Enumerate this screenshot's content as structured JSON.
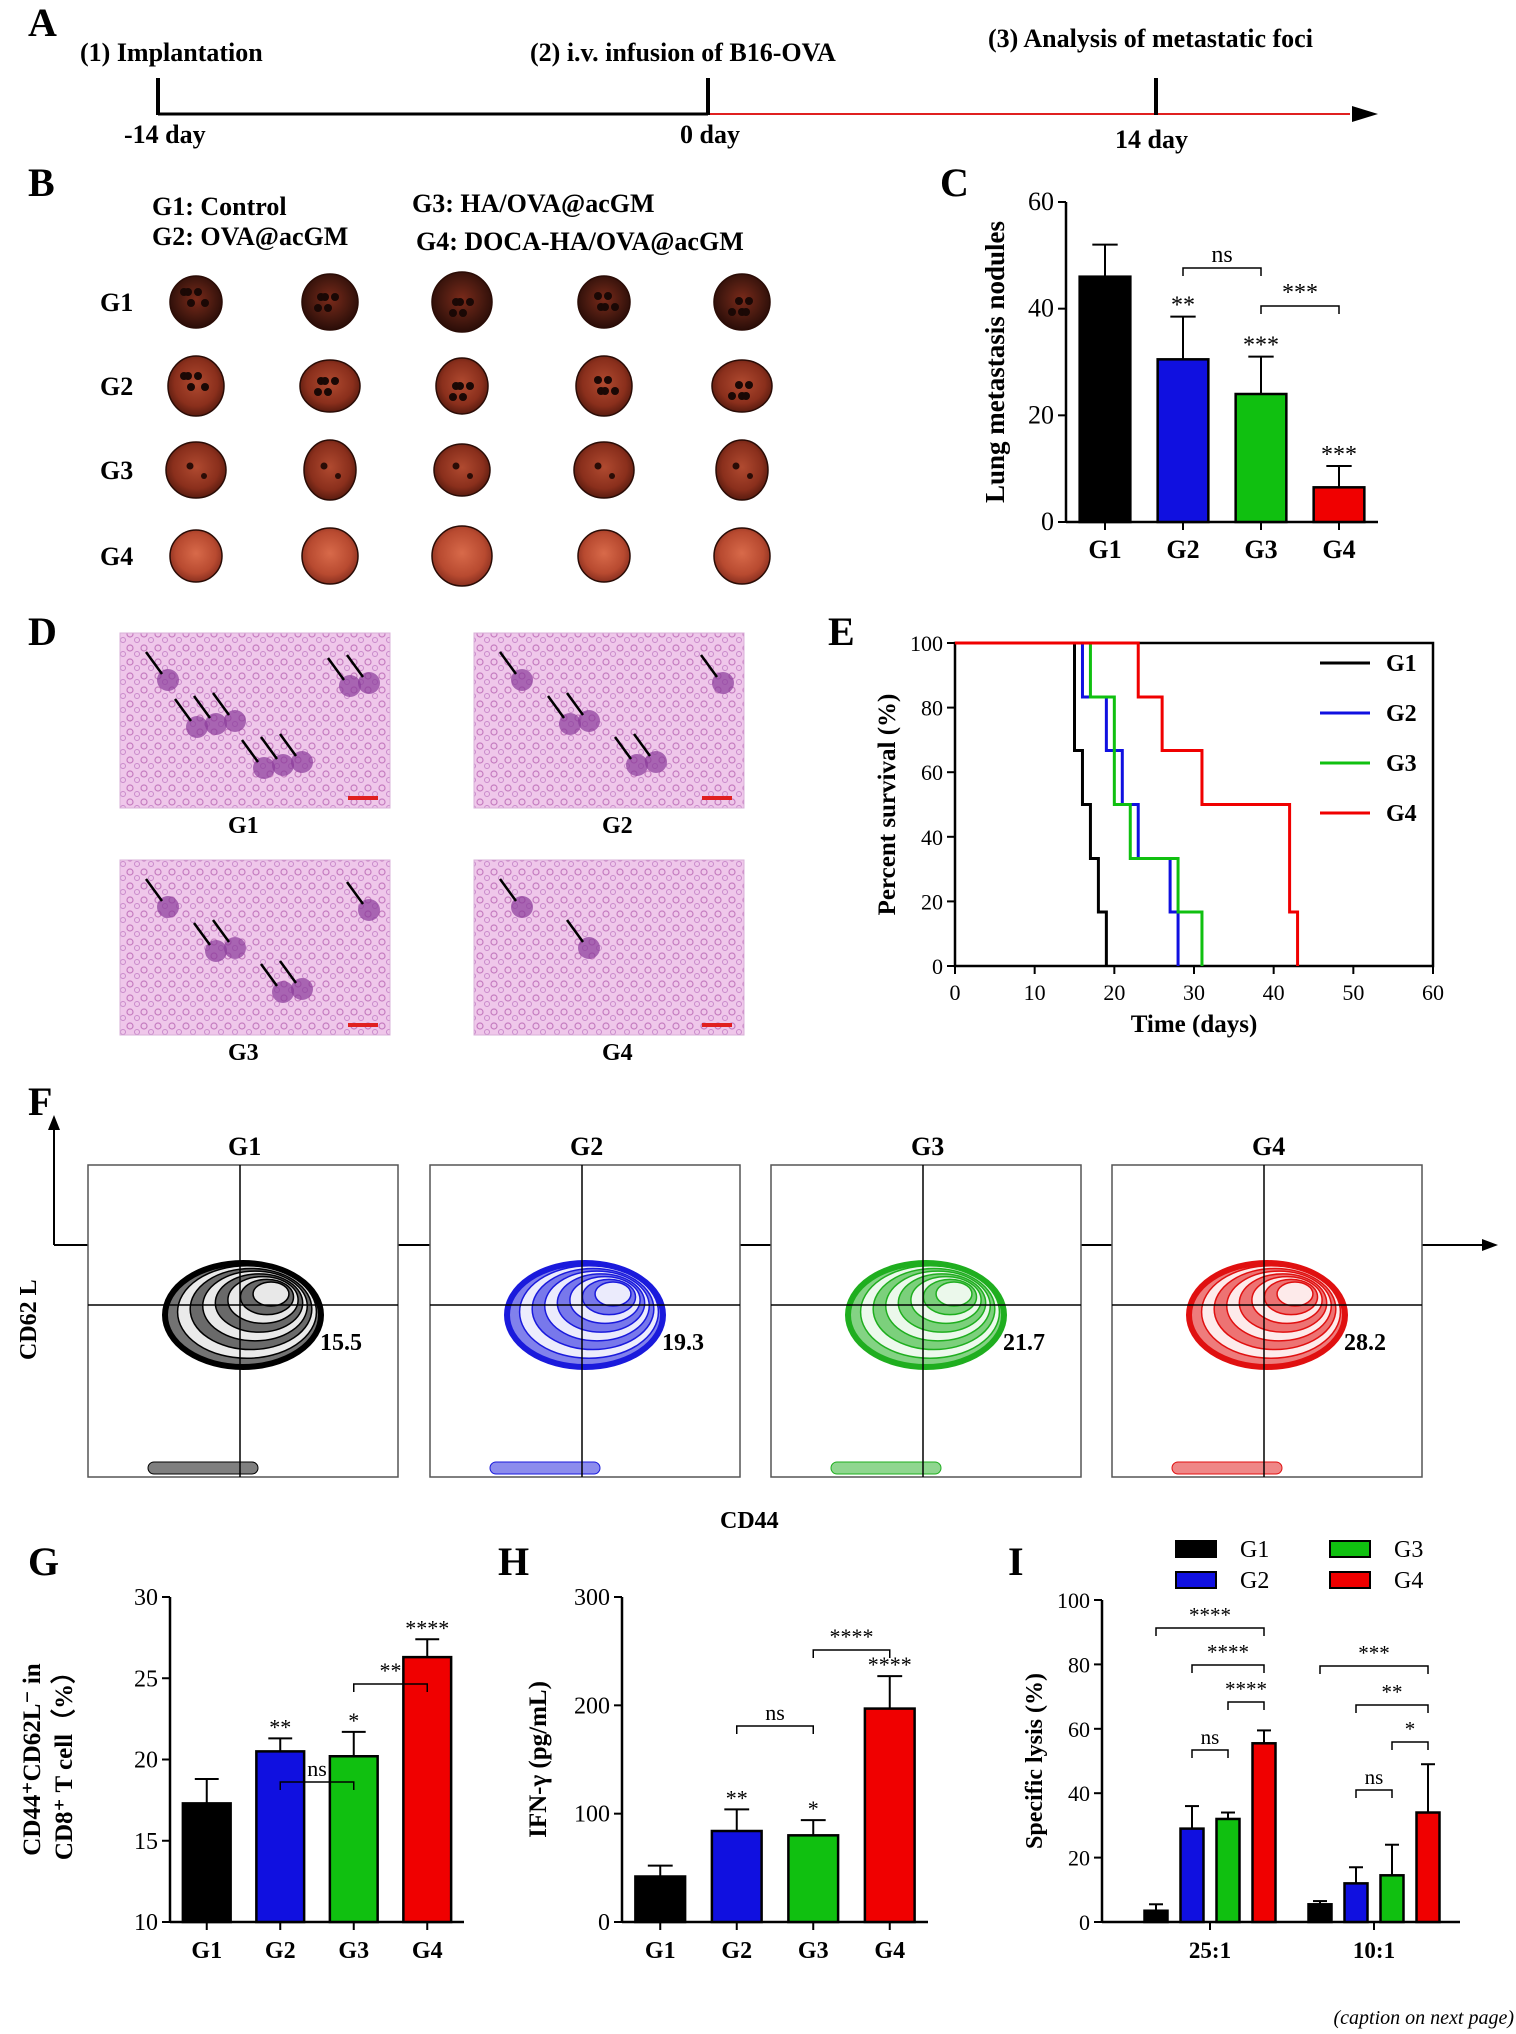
{
  "panel_letters": [
    "A",
    "B",
    "C",
    "D",
    "E",
    "F",
    "G",
    "H",
    "I"
  ],
  "timeline": {
    "steps": [
      {
        "label": "(1) Implantation",
        "day": "-14 day"
      },
      {
        "label": "(2) i.v. infusion of B16-OVA",
        "day": "0 day"
      },
      {
        "label": "(3) Analysis of metastatic foci",
        "day": "14 day"
      }
    ]
  },
  "lung_photos": {
    "legend": [
      "G1: Control",
      "G2: OVA@acGM",
      "G3: HA/OVA@acGM",
      "G4: DOCA-HA/OVA@acGM"
    ],
    "rows": [
      "G1",
      "G2",
      "G3",
      "G4"
    ]
  },
  "histology": {
    "labels": [
      "G1",
      "G2",
      "G3",
      "G4"
    ]
  },
  "flow": {
    "groups": [
      {
        "name": "G1",
        "value": "15.5",
        "color": "#000000"
      },
      {
        "name": "G2",
        "value": "19.3",
        "color": "#1a1adc"
      },
      {
        "name": "G3",
        "value": "21.7",
        "color": "#1fae1f"
      },
      {
        "name": "G4",
        "value": "28.2",
        "color": "#e01010"
      }
    ],
    "ylabel": "CD62 L",
    "xlabel": "CD44"
  },
  "chart_data": [
    {
      "id": "C",
      "type": "bar",
      "categories": [
        "G1",
        "G2",
        "G3",
        "G4"
      ],
      "values": [
        46,
        30.5,
        24,
        6.5
      ],
      "errors": [
        6,
        8,
        7,
        4
      ],
      "colors": [
        "#000000",
        "#1010e0",
        "#10c010",
        "#f00000"
      ],
      "ylabel": "Lung metastasis nodules",
      "ylim": [
        0,
        60
      ],
      "yticks": [
        0,
        20,
        40,
        60
      ],
      "stars": [
        "",
        "**",
        "***",
        "***"
      ],
      "brackets": [
        {
          "from": 1,
          "to": 2,
          "label": "ns"
        },
        {
          "from": 2,
          "to": 3,
          "label": "***"
        }
      ]
    },
    {
      "id": "E",
      "type": "line",
      "step": true,
      "xlabel": "Time (days)",
      "ylabel": "Percent survival (%)",
      "xlim": [
        0,
        60
      ],
      "ylim": [
        0,
        100
      ],
      "xticks": [
        0,
        10,
        20,
        30,
        40,
        50,
        60
      ],
      "yticks": [
        0,
        20,
        40,
        60,
        80,
        100
      ],
      "series": [
        {
          "name": "G1",
          "color": "#000000",
          "x": [
            0,
            15,
            15,
            16,
            16,
            17,
            17,
            18,
            18,
            19,
            19
          ],
          "y": [
            100,
            100,
            66.7,
            66.7,
            50,
            50,
            33.3,
            33.3,
            16.7,
            16.7,
            0
          ]
        },
        {
          "name": "G2",
          "color": "#1010e0",
          "x": [
            0,
            16,
            16,
            19,
            19,
            21,
            21,
            23,
            23,
            27,
            27,
            28,
            28
          ],
          "y": [
            100,
            100,
            83.3,
            83.3,
            66.7,
            66.7,
            50,
            50,
            33.3,
            33.3,
            16.7,
            16.7,
            0
          ]
        },
        {
          "name": "G3",
          "color": "#10c010",
          "x": [
            0,
            17,
            17,
            20,
            20,
            22,
            22,
            28,
            28,
            31,
            31
          ],
          "y": [
            100,
            100,
            83.3,
            83.3,
            50,
            50,
            33.3,
            33.3,
            16.7,
            16.7,
            0
          ]
        },
        {
          "name": "G4",
          "color": "#f00000",
          "x": [
            0,
            23,
            23,
            26,
            26,
            31,
            31,
            42,
            42,
            43,
            43
          ],
          "y": [
            100,
            100,
            83.3,
            83.3,
            66.7,
            66.7,
            50,
            50,
            16.7,
            16.7,
            0
          ]
        }
      ]
    },
    {
      "id": "G",
      "type": "bar",
      "categories": [
        "G1",
        "G2",
        "G3",
        "G4"
      ],
      "values": [
        17.3,
        20.5,
        20.2,
        26.3
      ],
      "errors": [
        1.5,
        0.8,
        1.5,
        1.1
      ],
      "colors": [
        "#000000",
        "#1010e0",
        "#10c010",
        "#f00000"
      ],
      "ylabel_line1": "CD44⁺CD62L⁻ in",
      "ylabel_line2": "CD8⁺ T cell（%）",
      "ylim": [
        10,
        30
      ],
      "yticks": [
        10,
        15,
        20,
        25,
        30
      ],
      "stars": [
        "",
        "**",
        "*",
        "****"
      ],
      "brackets": [
        {
          "from": 1,
          "to": 2,
          "label": "ns"
        },
        {
          "from": 2,
          "to": 3,
          "label": "**"
        }
      ]
    },
    {
      "id": "H",
      "type": "bar",
      "categories": [
        "G1",
        "G2",
        "G3",
        "G4"
      ],
      "values": [
        42,
        84,
        80,
        197
      ],
      "errors": [
        10,
        20,
        14,
        30
      ],
      "colors": [
        "#000000",
        "#1010e0",
        "#10c010",
        "#f00000"
      ],
      "ylabel": "IFN-γ (pg/mL)",
      "ylim": [
        0,
        300
      ],
      "yticks": [
        0,
        100,
        200,
        300
      ],
      "stars": [
        "",
        "**",
        "*",
        "****"
      ],
      "brackets": [
        {
          "from": 1,
          "to": 2,
          "label": "ns"
        },
        {
          "from": 2,
          "to": 3,
          "label": "****"
        }
      ]
    },
    {
      "id": "I",
      "type": "bar",
      "categories": [
        "25:1",
        "10:1"
      ],
      "ylabel": "Specific lysis (%)",
      "ylim": [
        0,
        100
      ],
      "yticks": [
        0,
        20,
        40,
        60,
        80,
        100
      ],
      "series": [
        {
          "name": "G1",
          "color": "#000000",
          "values": [
            3.5,
            5.5
          ],
          "errors": [
            2,
            1
          ]
        },
        {
          "name": "G2",
          "color": "#1010e0",
          "values": [
            29,
            12
          ],
          "errors": [
            7,
            5
          ]
        },
        {
          "name": "G3",
          "color": "#10c010",
          "values": [
            32,
            14.5
          ],
          "errors": [
            2,
            9.5
          ]
        },
        {
          "name": "G4",
          "color": "#f00000",
          "values": [
            55.5,
            34
          ],
          "errors": [
            4,
            15
          ]
        }
      ],
      "brackets": [
        {
          "group": 0,
          "from": 0,
          "to": 3,
          "label": "****"
        },
        {
          "group": 0,
          "from": 1,
          "to": 3,
          "label": "****"
        },
        {
          "group": 0,
          "from": 2,
          "to": 3,
          "label": "****"
        },
        {
          "group": 0,
          "from": 1,
          "to": 2,
          "label": "ns"
        },
        {
          "group": 1,
          "from": 0,
          "to": 3,
          "label": "***"
        },
        {
          "group": 1,
          "from": 1,
          "to": 3,
          "label": "**"
        },
        {
          "group": 1,
          "from": 2,
          "to": 3,
          "label": "*"
        },
        {
          "group": 1,
          "from": 1,
          "to": 2,
          "label": "ns"
        }
      ]
    }
  ],
  "caption_note": "(caption on next page)"
}
